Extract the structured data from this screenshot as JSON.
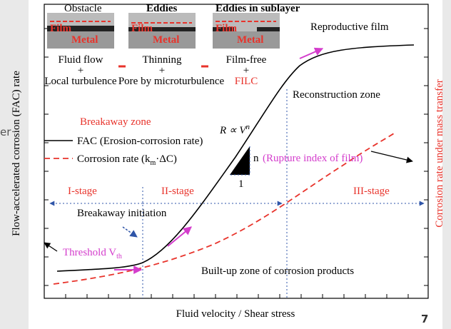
{
  "panels": [
    {
      "top": "Obstacle",
      "film": "Film",
      "metal": "Metal",
      "caption": [
        "Fluid flow",
        "+",
        "Local turbulence"
      ]
    },
    {
      "top": "Eddies",
      "film": "Film",
      "metal": "Metal",
      "caption": [
        "Thinning",
        "+",
        "Pore by microturbulence"
      ]
    },
    {
      "top": "Eddies in sublayer",
      "film": "Film",
      "metal": "Metal",
      "caption": [
        "Film-free",
        "+",
        "FILC"
      ]
    }
  ],
  "labels": {
    "reproductive": "Reproductive film",
    "reconstruction": "Reconstruction zone",
    "breakaway_zone": "Breakaway zone",
    "equation": {
      "base": "R ∝ V",
      "exp": "n"
    },
    "slope_n": "n",
    "rupture": "(Rupture index of film)",
    "slope_1": "1",
    "stage1": "I-stage",
    "stage2": "II-stage",
    "stage3": "III-stage",
    "initiation": "Breakaway initiation",
    "threshold": {
      "text": "Threshold V",
      "sub": "th"
    },
    "builtup": "Built-up zone of corrosion products",
    "cutoff": "er",
    "page": "7"
  },
  "legend": {
    "fac": "FAC (Erosion-corrosion rate)",
    "corrosion": {
      "pre": "Corrosion rate (k",
      "sub": "m",
      "post": "·ΔC)"
    }
  },
  "axes": {
    "x": "Fluid velocity / Shear stress",
    "y": "Flow-accelerated corrosion (FAC) rate",
    "y2": "Corrosion rate under mass transfer"
  }
}
